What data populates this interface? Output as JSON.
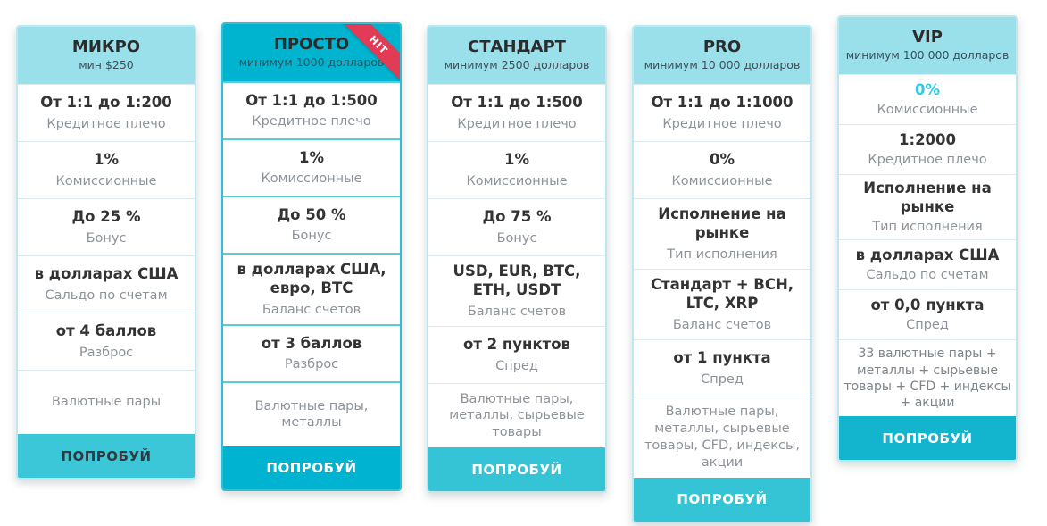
{
  "colors": {
    "header_light": "#99e0eb",
    "header_accent": "#00b4cf",
    "button_soft": "#35c4d6",
    "button_strong": "#00b3d0",
    "ribbon_red": "#e23b55",
    "vip_accent_value": "#33c6e8",
    "value_text": "#333333",
    "label_text": "#8d9399"
  },
  "cards": [
    {
      "title": "МИКРО",
      "subtitle": "мин $250",
      "rows": [
        {
          "value": "От 1:1 до 1:200",
          "label": "Кредитное плечо"
        },
        {
          "value": "1%",
          "label": "Комиссионные"
        },
        {
          "value": "До 25 %",
          "label": "Бонус"
        },
        {
          "value": "в долларах США",
          "label": "Сальдо по счетам"
        },
        {
          "value": "от 4 баллов",
          "label": "Разброс"
        },
        {
          "value": "",
          "label": "Валютные пары"
        }
      ],
      "button_label": "ПОПРОБУЙ"
    },
    {
      "title": "ПРОСТО",
      "subtitle": "минимум 1000 долларов",
      "badge": "HIT",
      "rows": [
        {
          "value": "От 1:1 до 1:500",
          "label": "Кредитное плечо"
        },
        {
          "value": "1%",
          "label": "Комиссионные"
        },
        {
          "value": "До 50 %",
          "label": "Бонус"
        },
        {
          "value": "в долларах США, евро, BTC",
          "label": "Баланс счетов"
        },
        {
          "value": "от 3 баллов",
          "label": "Разброс"
        },
        {
          "value": "",
          "label": "Валютные пары, металлы"
        }
      ],
      "button_label": "ПОПРОБУЙ"
    },
    {
      "title": "СТАНДАРТ",
      "subtitle": "минимум 2500 долларов",
      "rows": [
        {
          "value": "От 1:1 до 1:500",
          "label": "Кредитное плечо"
        },
        {
          "value": "1%",
          "label": "Комиссионные"
        },
        {
          "value": "До 75 %",
          "label": "Бонус"
        },
        {
          "value": "USD, EUR, BTC, ETH, USDT",
          "label": "Баланс счетов"
        },
        {
          "value": "от 2 пунктов",
          "label": "Спред"
        },
        {
          "value": "",
          "label": "Валютные пары, металлы, сырьевые товары"
        }
      ],
      "button_label": "ПОПРОБУЙ"
    },
    {
      "title": "PRO",
      "subtitle": "минимум 10 000 долларов",
      "rows": [
        {
          "value": "От 1:1 до 1:1000",
          "label": "Кредитное плечо"
        },
        {
          "value": "0%",
          "label": "Комиссионные"
        },
        {
          "value": "Исполнение на рынке",
          "label": "Тип исполнения"
        },
        {
          "value": "Стандарт + BCH, LTC, XRP",
          "label": "Баланс счетов"
        },
        {
          "value": "от 1 пункта",
          "label": "Спред"
        },
        {
          "value": "",
          "label": "Валютные пары, металлы, сырьевые товары, CFD, индексы, акции"
        }
      ],
      "button_label": "ПОПРОБУЙ"
    },
    {
      "title": "VIP",
      "subtitle": "минимум 100 000 долларов",
      "rows": [
        {
          "value": "0%",
          "label": "Комиссионные"
        },
        {
          "value": "1:2000",
          "label": "Кредитное плечо"
        },
        {
          "value": "Исполнение на рынке",
          "label": "Тип исполнения"
        },
        {
          "value": "в долларах США",
          "label": "Сальдо по счетам"
        },
        {
          "value": "от 0,0 пункта",
          "label": "Спред"
        },
        {
          "value": "",
          "label": "33 валютные пары + металлы + сырьевые товары + CFD + индексы + акции"
        }
      ],
      "button_label": "ПОПРОБУЙ"
    }
  ]
}
